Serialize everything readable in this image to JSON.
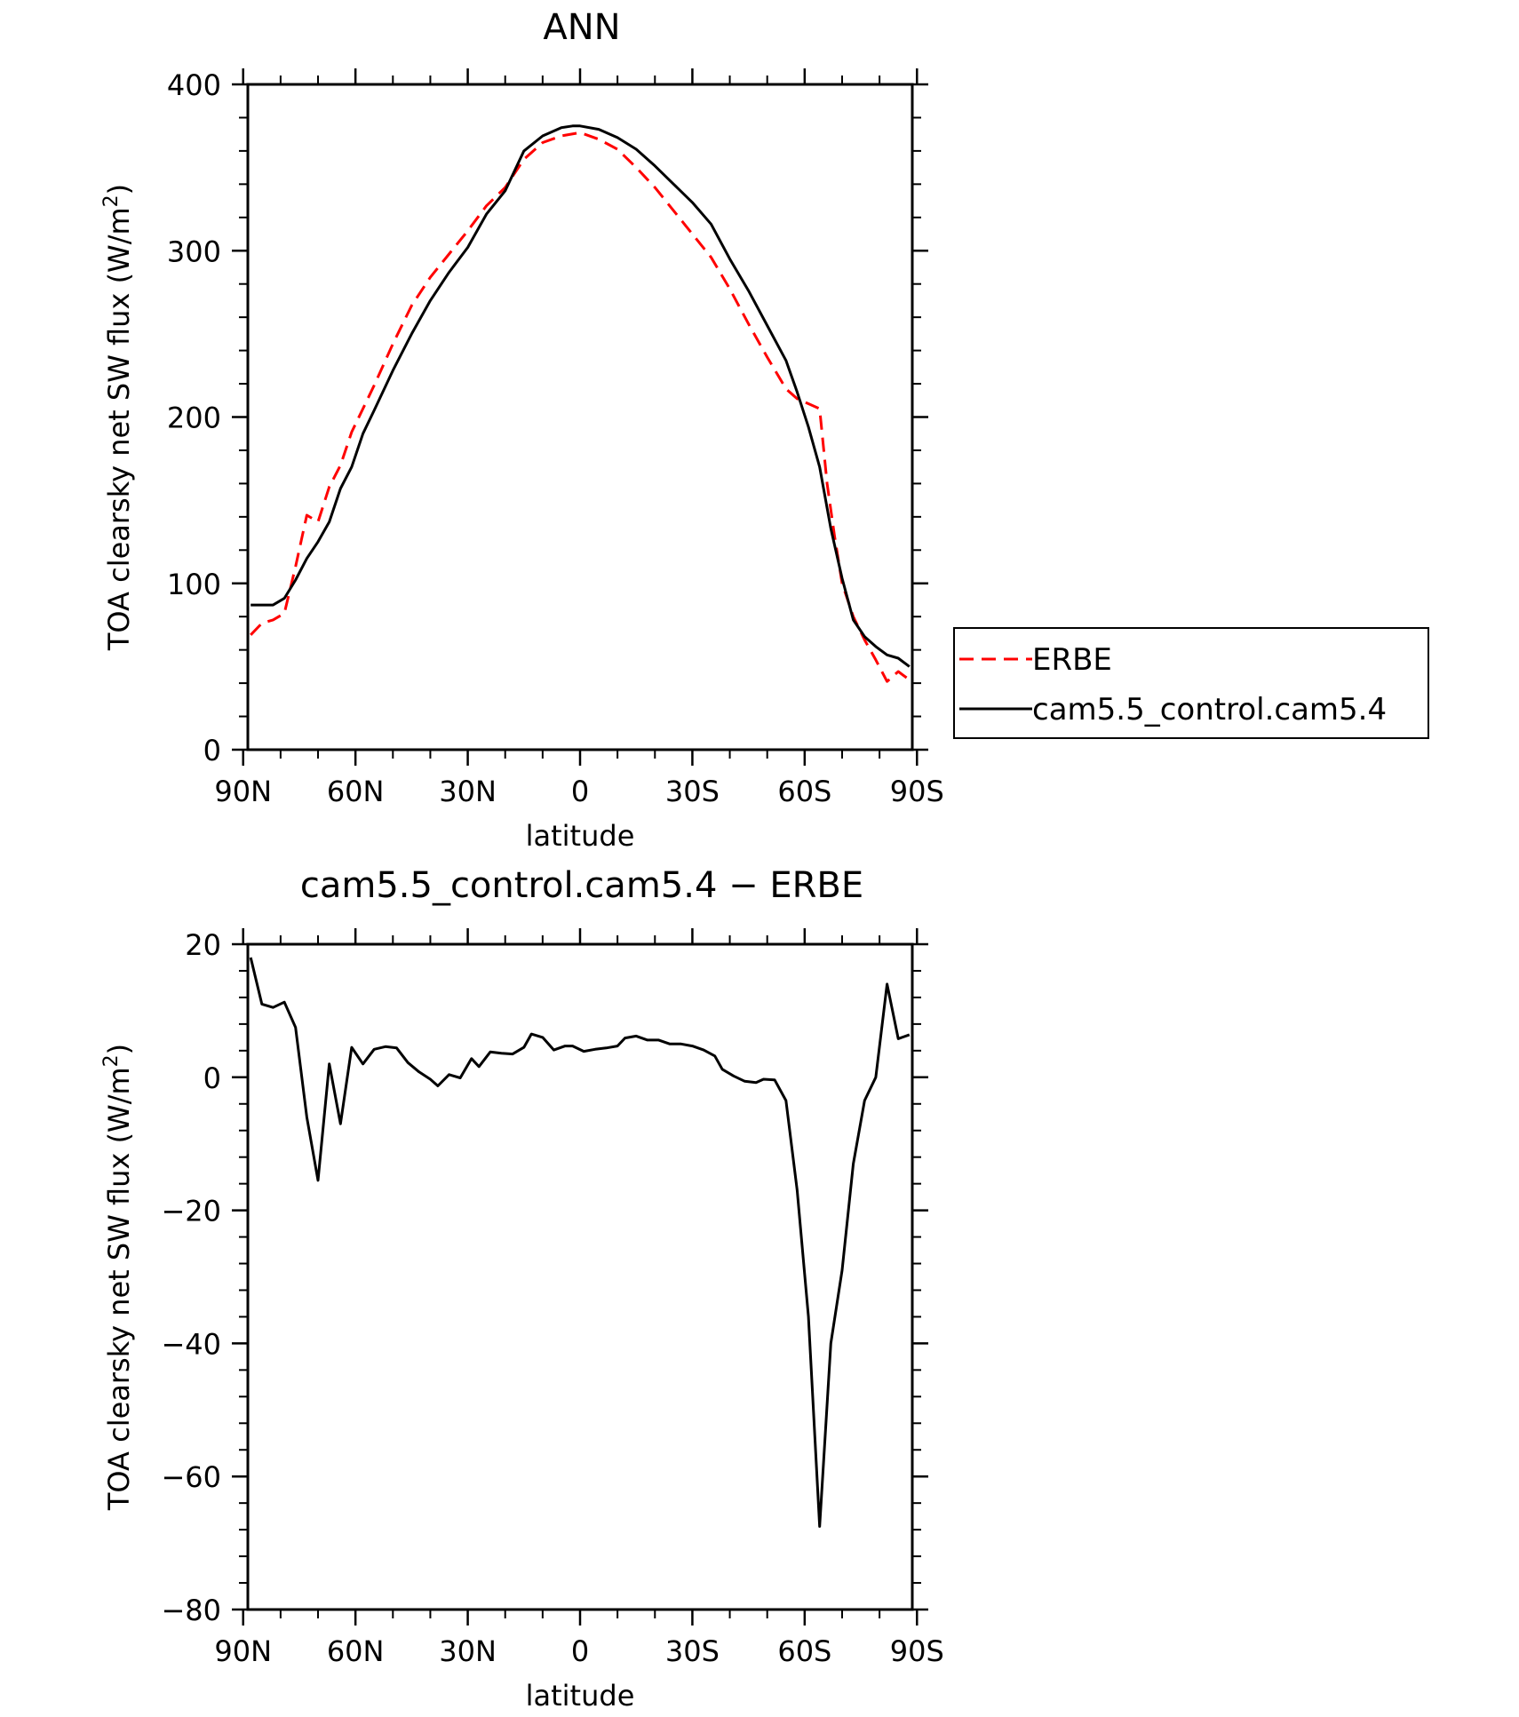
{
  "chart_data": [
    {
      "type": "line",
      "title": "ANN",
      "xlabel": "latitude",
      "ylabel_main": "TOA clearsky net SW flux (W/m",
      "ylabel_sup": "2",
      "ylabel_close": ")",
      "xlim": [
        -88.75,
        88.75
      ],
      "ylim": [
        0,
        400
      ],
      "x_ticks": [
        {
          "value": -90,
          "label": "90N"
        },
        {
          "value": -60,
          "label": "60N"
        },
        {
          "value": -30,
          "label": "30N"
        },
        {
          "value": 0,
          "label": "0"
        },
        {
          "value": 30,
          "label": "30S"
        },
        {
          "value": 60,
          "label": "60S"
        },
        {
          "value": 90,
          "label": "90S"
        }
      ],
      "y_ticks": [
        {
          "value": 0,
          "label": "0"
        },
        {
          "value": 100,
          "label": "100"
        },
        {
          "value": 200,
          "label": "200"
        },
        {
          "value": 300,
          "label": "300"
        },
        {
          "value": 400,
          "label": "400"
        }
      ],
      "legend_placement": "right",
      "series": [
        {
          "name": "ERBE",
          "color": "#ff0000",
          "dash": "dashed",
          "x": [
            -88,
            -85,
            -82,
            -79,
            -76,
            -73,
            -70,
            -67,
            -64,
            -61,
            -58,
            -55,
            -50,
            -45,
            -40,
            -35,
            -30,
            -25,
            -20,
            -15,
            -10,
            -5,
            0,
            5,
            10,
            15,
            20,
            25,
            30,
            35,
            40,
            45,
            50,
            55,
            58,
            61,
            64,
            66,
            68,
            70,
            73,
            76,
            79,
            82,
            85,
            88
          ],
          "values": [
            69,
            76,
            78,
            82,
            110,
            141,
            137,
            158,
            171,
            191,
            205,
            219,
            244,
            267,
            284,
            298,
            312,
            327,
            338,
            355,
            365,
            369,
            371,
            367,
            361,
            350,
            338,
            324,
            310,
            296,
            277,
            256,
            236,
            217,
            211,
            208,
            205,
            160,
            128,
            100,
            80,
            66,
            54,
            41,
            47,
            42
          ]
        },
        {
          "name": "cam5.5_control.cam5.4",
          "color": "#000000",
          "dash": "solid",
          "x": [
            -88,
            -85,
            -82,
            -79,
            -76,
            -73,
            -70,
            -67,
            -64,
            -61,
            -58,
            -55,
            -50,
            -45,
            -40,
            -35,
            -30,
            -25,
            -20,
            -15,
            -10,
            -5,
            -2,
            0,
            5,
            10,
            15,
            20,
            25,
            30,
            35,
            40,
            45,
            50,
            55,
            58,
            61,
            64,
            67,
            70,
            73,
            76,
            79,
            82,
            85,
            88
          ],
          "values": [
            87,
            87,
            87,
            91,
            102,
            115,
            125,
            137,
            157,
            170,
            190,
            204,
            228,
            250,
            270,
            287,
            302,
            322,
            336,
            360,
            369,
            374,
            375,
            375,
            373,
            368,
            361,
            351,
            340,
            329,
            316,
            295,
            276,
            255,
            234,
            215,
            194,
            170,
            133,
            103,
            78,
            68,
            62,
            57,
            55,
            50
          ]
        }
      ]
    },
    {
      "type": "line",
      "title": "cam5.5_control.cam5.4 − ERBE",
      "xlabel": "latitude",
      "ylabel_main": "TOA clearsky net SW flux (W/m",
      "ylabel_sup": "2",
      "ylabel_close": ")",
      "xlim": [
        -88.75,
        88.75
      ],
      "ylim": [
        -80,
        20
      ],
      "x_ticks": [
        {
          "value": -90,
          "label": "90N"
        },
        {
          "value": -60,
          "label": "60N"
        },
        {
          "value": -30,
          "label": "30N"
        },
        {
          "value": 0,
          "label": "0"
        },
        {
          "value": 30,
          "label": "30S"
        },
        {
          "value": 60,
          "label": "60S"
        },
        {
          "value": 90,
          "label": "90S"
        }
      ],
      "y_ticks": [
        {
          "value": -80,
          "label": "−80"
        },
        {
          "value": -60,
          "label": "−60"
        },
        {
          "value": -40,
          "label": "−40"
        },
        {
          "value": -20,
          "label": "−20"
        },
        {
          "value": 0,
          "label": "0"
        },
        {
          "value": 20,
          "label": "20"
        }
      ],
      "series": [
        {
          "name": "",
          "color": "#000000",
          "dash": "solid",
          "x": [
            -88,
            -85,
            -82,
            -79,
            -76,
            -73,
            -70,
            -67,
            -64,
            -61,
            -58,
            -55,
            -52,
            -49,
            -46,
            -43,
            -40,
            -38,
            -35,
            -32,
            -29,
            -27,
            -24,
            -21,
            -18,
            -15,
            -13,
            -10,
            -7,
            -4,
            -2,
            1,
            4,
            7,
            10,
            12,
            15,
            18,
            21,
            24,
            27,
            30,
            33,
            36,
            38,
            41,
            44,
            47,
            49,
            52,
            55,
            58,
            61,
            64,
            67,
            70,
            73,
            76,
            79,
            82,
            85,
            88
          ],
          "values": [
            18,
            11,
            10.5,
            11.3,
            7.5,
            -6,
            -15.5,
            2,
            -7,
            4.5,
            2,
            4.2,
            4.6,
            4.4,
            2.2,
            0.8,
            -0.3,
            -1.3,
            0.4,
            -0.1,
            2.8,
            1.6,
            3.8,
            3.6,
            3.5,
            4.5,
            6.5,
            6,
            4.1,
            4.7,
            4.7,
            3.9,
            4.2,
            4.4,
            4.7,
            5.9,
            6.2,
            5.6,
            5.6,
            5,
            5,
            4.7,
            4.1,
            3.2,
            1.2,
            0.2,
            -0.6,
            -0.8,
            -0.3,
            -0.4,
            -3.5,
            -17,
            -36,
            -67.5,
            -40,
            -29,
            -13,
            -3.5,
            0,
            14,
            5.8,
            6.4
          ]
        }
      ]
    }
  ]
}
